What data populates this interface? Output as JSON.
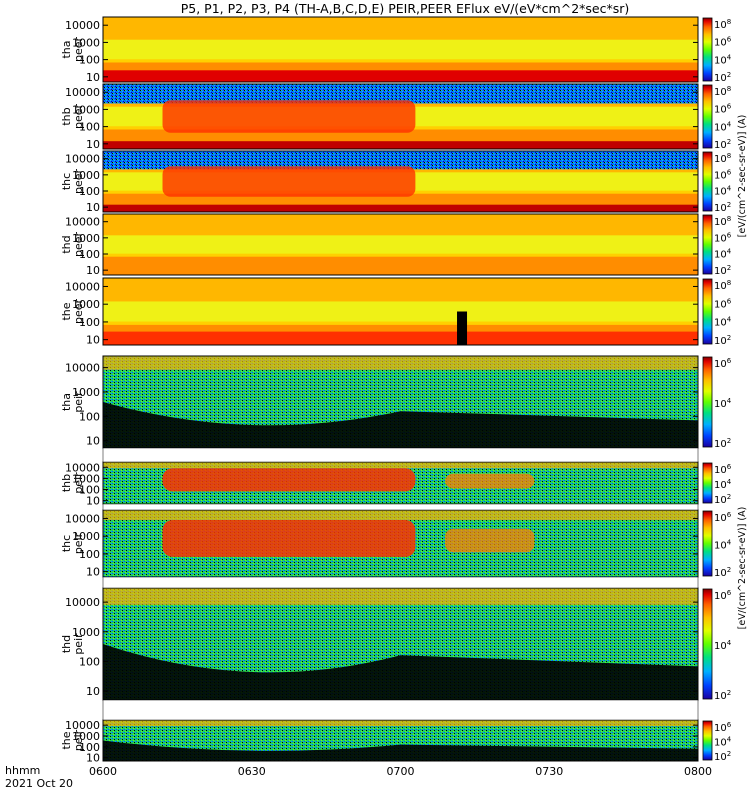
{
  "title": "P5, P1, P2, P3, P4 (TH-A,B,C,D,E) PEIR,PEER EFlux eV/(eV*cm^2*sec*sr)",
  "time_axis_label": "hhmm",
  "date_label": "2021 Oct 20",
  "colorbar_label_peer": "[eV/(cm^2-sec-sr-eV)] (A)",
  "colorbar_label_peir": "[eV/(cm^2-sec-sr-eV)] (A)",
  "chart_data": {
    "type": "heatmap",
    "x_ticks": [
      "0600",
      "0630",
      "0700",
      "0730",
      "0800"
    ],
    "x_range": [
      "06:00",
      "08:00"
    ],
    "y_scale": "log",
    "y_range_eV": [
      5,
      30000
    ],
    "y_ticks": [
      10,
      100,
      1000,
      10000
    ],
    "colorscale": [
      "#1a00a0",
      "#0040ff",
      "#00b0ff",
      "#00e080",
      "#60ff00",
      "#e0ff00",
      "#ffc000",
      "#ff6000",
      "#e00000",
      "#800000"
    ],
    "panels": [
      {
        "probe": "tha",
        "species": "peer",
        "label": [
          "tha",
          "peer"
        ],
        "colorbar_ticks": [
          "10^2",
          "10^4",
          "10^6",
          "10^8"
        ]
      },
      {
        "probe": "thb",
        "species": "peer",
        "label": [
          "thb",
          "peer"
        ],
        "colorbar_ticks": [
          "10^2",
          "10^4",
          "10^6",
          "10^8"
        ]
      },
      {
        "probe": "thc",
        "species": "peer",
        "label": [
          "thc",
          "peer"
        ],
        "colorbar_ticks": [
          "10^2",
          "10^4",
          "10^6",
          "10^8"
        ]
      },
      {
        "probe": "thd",
        "species": "peer",
        "label": [
          "thd",
          "peer"
        ],
        "colorbar_ticks": [
          "10^2",
          "10^4",
          "10^6",
          "10^8"
        ]
      },
      {
        "probe": "the",
        "species": "peer",
        "label": [
          "the",
          "peer"
        ],
        "colorbar_ticks": [
          "10^2",
          "10^4",
          "10^6",
          "10^8"
        ]
      },
      {
        "probe": "tha",
        "species": "peir",
        "label": [
          "tha",
          "peir"
        ],
        "colorbar_ticks": [
          "10^2",
          "10^4",
          "10^6"
        ]
      },
      {
        "probe": "thb",
        "species": "peir",
        "label": [
          "thb",
          "peir"
        ],
        "colorbar_ticks": [
          "10^2",
          "10^4",
          "10^6"
        ]
      },
      {
        "probe": "thc",
        "species": "peir",
        "label": [
          "thc",
          "peir"
        ],
        "colorbar_ticks": [
          "10^2",
          "10^4",
          "10^6"
        ]
      },
      {
        "probe": "thd",
        "species": "peir",
        "label": [
          "thd",
          "peir"
        ],
        "colorbar_ticks": [
          "10^2",
          "10^4",
          "10^6"
        ]
      },
      {
        "probe": "the",
        "species": "peir",
        "label": [
          "the",
          "peir"
        ],
        "colorbar_ticks": [
          "10^2",
          "10^4",
          "10^6"
        ]
      }
    ]
  }
}
